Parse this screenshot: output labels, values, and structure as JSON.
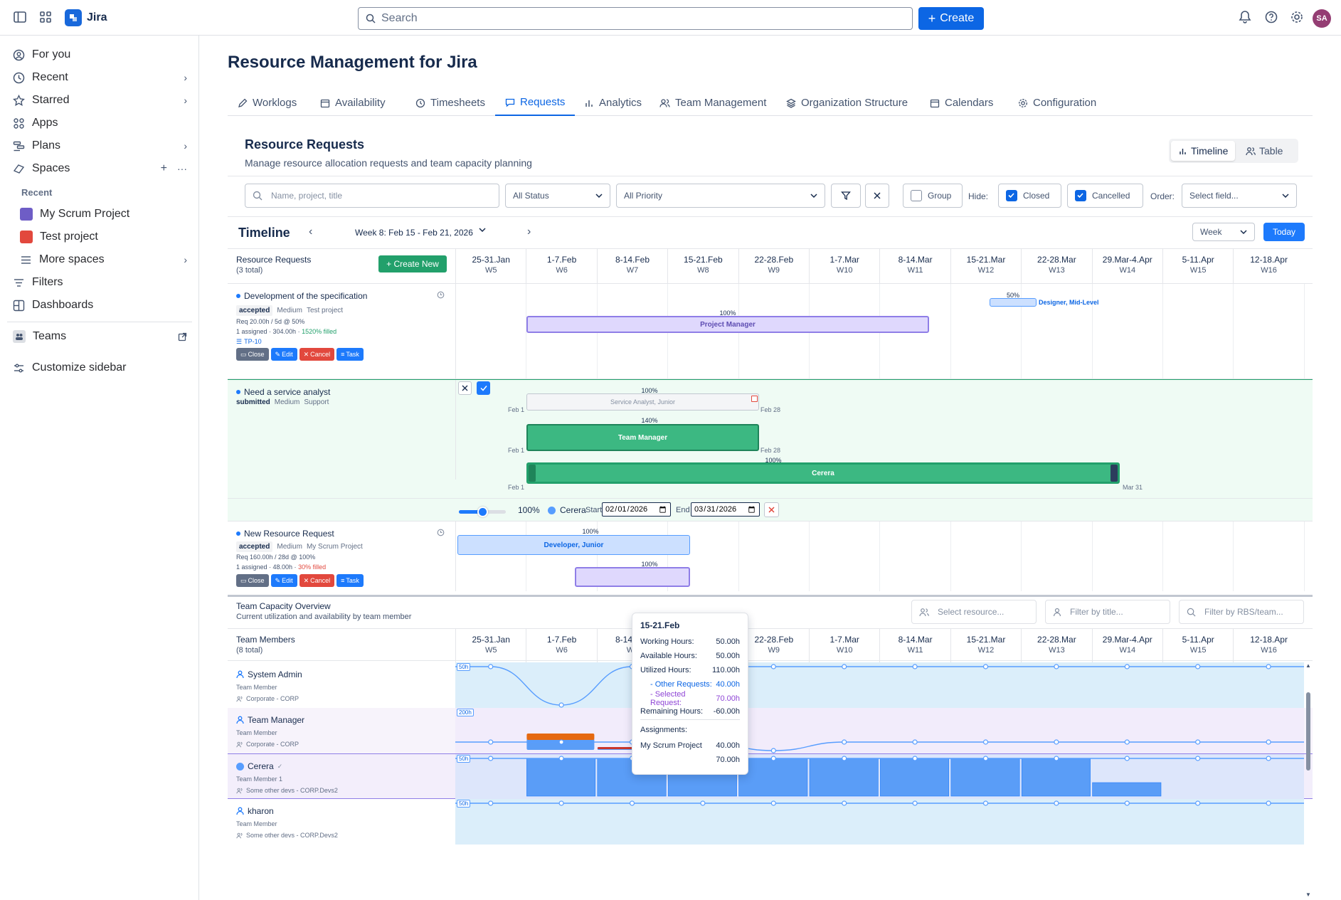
{
  "topbar": {
    "app_name": "Jira",
    "search_placeholder": "Search",
    "create_label": "Create",
    "avatar_initials": "SA"
  },
  "sidebar": {
    "items": [
      {
        "label": "For you",
        "icon": "person-circle-icon"
      },
      {
        "label": "Recent",
        "icon": "clock-icon"
      },
      {
        "label": "Starred",
        "icon": "star-icon"
      },
      {
        "label": "Apps",
        "icon": "apps-icon"
      },
      {
        "label": "Plans",
        "icon": "plans-icon"
      },
      {
        "label": "Spaces",
        "icon": "spaces-icon"
      }
    ],
    "recent_heading": "Recent",
    "projects": [
      {
        "label": "My Scrum Project",
        "color": "#6e5dc6"
      },
      {
        "label": "Test project",
        "color": "#e2483d"
      }
    ],
    "more_spaces": "More spaces",
    "filters": "Filters",
    "dashboards": "Dashboards",
    "teams": "Teams",
    "customize": "Customize sidebar"
  },
  "page": {
    "title": "Resource Management for Jira",
    "tabs": [
      {
        "label": "Worklogs"
      },
      {
        "label": "Availability"
      },
      {
        "label": "Timesheets"
      },
      {
        "label": "Requests"
      },
      {
        "label": "Analytics"
      },
      {
        "label": "Team Management"
      },
      {
        "label": "Organization Structure"
      },
      {
        "label": "Calendars"
      },
      {
        "label": "Configuration"
      }
    ],
    "active_tab": "Requests"
  },
  "requests_panel": {
    "title": "Resource Requests",
    "subtitle": "Manage resource allocation requests and team capacity planning",
    "view_timeline": "Timeline",
    "view_table": "Table",
    "filters": {
      "search_placeholder": "Name, project, title",
      "status": "All Status",
      "priority": "All Priority",
      "group": "Group",
      "hide_label": "Hide:",
      "closed": "Closed",
      "cancelled": "Cancelled",
      "order_label": "Order:",
      "order_placeholder": "Select field..."
    },
    "timeline": {
      "title": "Timeline",
      "week_label": "Week 8: Feb 15 - Feb 21, 2026",
      "scale": "Week",
      "today": "Today"
    },
    "list_header": {
      "title": "Resource Requests",
      "count": "(3 total)",
      "create_new": "+ Create New"
    },
    "columns": [
      {
        "range": "25-31.Jan",
        "week": "W5"
      },
      {
        "range": "1-7.Feb",
        "week": "W6"
      },
      {
        "range": "8-14.Feb",
        "week": "W7"
      },
      {
        "range": "15-21.Feb",
        "week": "W8"
      },
      {
        "range": "22-28.Feb",
        "week": "W9"
      },
      {
        "range": "1-7.Mar",
        "week": "W10"
      },
      {
        "range": "8-14.Mar",
        "week": "W11"
      },
      {
        "range": "15-21.Mar",
        "week": "W12"
      },
      {
        "range": "22-28.Mar",
        "week": "W13"
      },
      {
        "range": "29.Mar-4.Apr",
        "week": "W14"
      },
      {
        "range": "5-11.Apr",
        "week": "W15"
      },
      {
        "range": "12-18.Apr",
        "week": "W16"
      }
    ],
    "requests": [
      {
        "title": "Development of the specification",
        "status": "accepted",
        "priority": "Medium",
        "project": "Test project",
        "req": "Req 20.00h / 5d @ 50%",
        "assigned": "1 assigned · 304.00h ·",
        "filled": "1520% filled",
        "issue": "TP-10",
        "bars": [
          {
            "label": "Designer, Mid-Level",
            "pct": "50%"
          },
          {
            "label": "Project Manager",
            "pct": "100%"
          }
        ]
      },
      {
        "title": "Need a service analyst",
        "status": "submitted",
        "priority": "Medium",
        "project": "Support",
        "bars": [
          {
            "label": "Service Analyst, Junior",
            "pct": "100%",
            "start": "Feb 1",
            "end": "Feb 28"
          },
          {
            "label": "Team Manager",
            "pct": "140%",
            "start": "Feb 1",
            "end": "Feb 28"
          },
          {
            "label": "Cerera",
            "pct": "100%",
            "start": "Feb 1",
            "end": "Mar 31"
          }
        ],
        "editor": {
          "percent": "100%",
          "percent_value": 100,
          "resource": "Cerera",
          "start_label": "Start",
          "start": "2026-02-01",
          "end_label": "End",
          "end": "2026-03-31"
        }
      },
      {
        "title": "New Resource Request",
        "status": "accepted",
        "priority": "Medium",
        "project": "My Scrum Project",
        "req": "Req 160.00h / 28d @ 100%",
        "assigned": "1 assigned · 48.00h ·",
        "filled": "30% filled",
        "bars": [
          {
            "label": "Developer, Junior",
            "pct": "100%"
          },
          {
            "label": "",
            "pct": "100%"
          }
        ]
      }
    ],
    "action_buttons": {
      "close": "Close",
      "edit": "Edit",
      "cancel": "Cancel",
      "task": "Task"
    }
  },
  "capacity": {
    "title": "Team Capacity Overview",
    "subtitle": "Current utilization and availability by team member",
    "select_resource": "Select resource...",
    "filter_title": "Filter by title...",
    "filter_rbs": "Filter by RBS/team...",
    "members_header": "Team Members",
    "members_count": "(8 total)",
    "members": [
      {
        "name": "System Admin",
        "role": "Team Member",
        "org": "Corporate - CORP",
        "cap": "50h"
      },
      {
        "name": "Team Manager",
        "role": "Team Member",
        "org": "Corporate - CORP",
        "cap": "200h"
      },
      {
        "name": "Cerera",
        "role": "Team Member 1",
        "org": "Some other devs - CORP.Devs2",
        "cap": "50h"
      },
      {
        "name": "kharon",
        "role": "Team Member",
        "org": "Some other devs - CORP.Devs2",
        "cap": "50h"
      }
    ]
  },
  "tooltip": {
    "title": "15-21.Feb",
    "rows": [
      {
        "label": "Working Hours:",
        "value": "50.00h"
      },
      {
        "label": "Available Hours:",
        "value": "50.00h"
      },
      {
        "label": "Utilized Hours:",
        "value": "110.00h"
      },
      {
        "label": "- Other Requests:",
        "value": "40.00h"
      },
      {
        "label": "- Selected Request:",
        "value": "70.00h"
      },
      {
        "label": "Remaining Hours:",
        "value": "-60.00h"
      }
    ],
    "assignments_label": "Assignments:",
    "assignments": [
      {
        "label": "My Scrum Project",
        "value": "40.00h"
      },
      {
        "label": "",
        "value": "70.00h"
      }
    ]
  }
}
